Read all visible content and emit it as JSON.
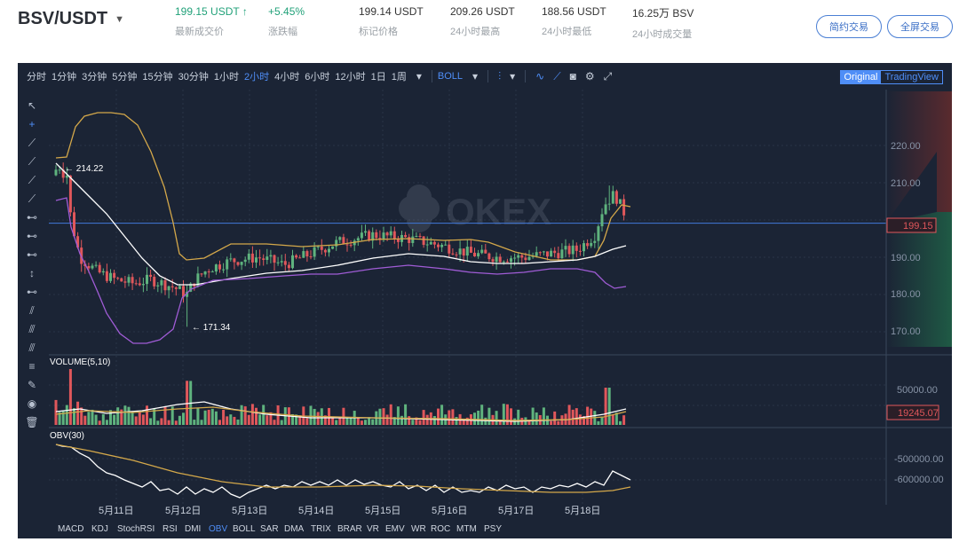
{
  "header": {
    "pair": "BSV/USDT",
    "last_price": "199.15 USDT",
    "last_price_label": "最新成交价",
    "change": "+5.45%",
    "change_label": "涨跌幅",
    "mark_price": "199.14 USDT",
    "mark_price_label": "标记价格",
    "high": "209.26 USDT",
    "high_label": "24小时最高",
    "low": "188.56 USDT",
    "low_label": "24小时最低",
    "volume": "16.25万 BSV",
    "volume_label": "24小时成交量",
    "btn_simple": "简约交易",
    "btn_full": "全屏交易"
  },
  "toolbar": {
    "timeframes": [
      "分时",
      "1分钟",
      "3分钟",
      "5分钟",
      "15分钟",
      "30分钟",
      "1小时",
      "2小时",
      "4小时",
      "6小时",
      "12小时",
      "1日",
      "1周"
    ],
    "active_timeframe": "2小时",
    "indicator": "BOLL",
    "view_original": "Original",
    "view_tradingview": "TradingView"
  },
  "colors": {
    "bg": "#1b2435",
    "up": "#5fb37e",
    "down": "#e0575b",
    "boll_upper": "#d4a84a",
    "boll_mid": "#ffffff",
    "boll_lower": "#a05cd6",
    "hline": "#3d6fc8",
    "grid": "#2a3548"
  },
  "watermark": "OKEX",
  "main_panel": {
    "y_ticks": [
      "220.00",
      "210.00",
      "190.00",
      "180.00",
      "170.00"
    ],
    "current_price_tag": "199.15",
    "hline_price": 199.15,
    "high_annotation": "← 214.22",
    "low_annotation": "← 171.34"
  },
  "volume_panel": {
    "title": "VOLUME(5,10)",
    "y_ticks": [
      "50000.00"
    ],
    "current_tag": "19245.07"
  },
  "obv_panel": {
    "title": "OBV(30)",
    "y_ticks": [
      "-500000.00",
      "-600000.00"
    ]
  },
  "x_labels": [
    "5月11日",
    "5月12日",
    "5月13日",
    "5月14日",
    "5月15日",
    "5月16日",
    "5月17日",
    "5月18日"
  ],
  "indicator_tabs": [
    "MACD",
    "KDJ",
    "StochRSI",
    "RSI",
    "DMI",
    "OBV",
    "BOLL",
    "SAR",
    "DMA",
    "TRIX",
    "BRAR",
    "VR",
    "EMV",
    "WR",
    "ROC",
    "MTM",
    "PSY"
  ],
  "active_indicator_tab": "OBV",
  "left_tools": [
    "cursor-icon",
    "crosshair-icon",
    "trend-line-icon",
    "ray-icon",
    "extended-line-icon",
    "segment-icon",
    "horizontal-line-icon",
    "horizontal-ray-icon",
    "horizontal-segment-icon",
    "vertical-line-icon",
    "price-line-icon",
    "parallel-channel-icon",
    "fib-retracement-icon",
    "fib-extension-icon",
    "measure-icon",
    "brush-icon",
    "visibility-icon",
    "trash-icon"
  ]
}
